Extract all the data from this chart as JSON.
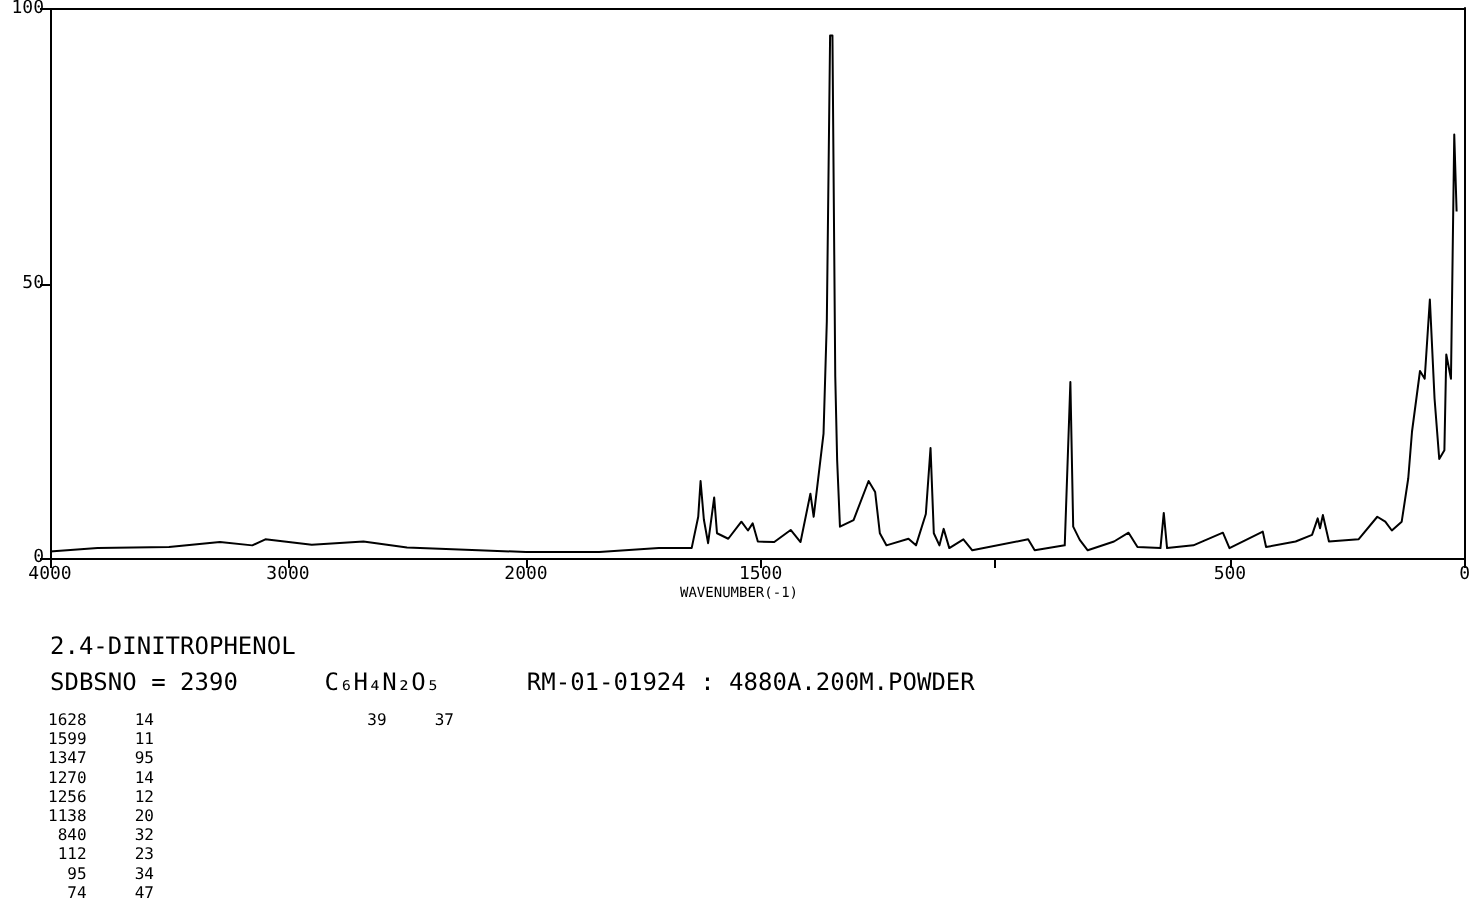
{
  "chart_data": [
    {
      "type": "line",
      "title": "2.4-DINITROPHENOL",
      "subtitle": "SDBSNO = 2390      C₆H₄N₂O₅      RM-01-01924 : 4880A.200M.POWDER",
      "x": [
        4000,
        3800,
        3500,
        3286,
        3150,
        3095,
        2900,
        2683,
        2500,
        2200,
        2000
      ],
      "values": [
        1.2,
        1.8,
        2,
        2.9,
        2.3,
        3.4,
        2.4,
        3,
        1.9,
        1.4,
        1.1
      ],
      "color": "#000000",
      "xlim": [
        4000,
        2000
      ],
      "xticks": [
        4000,
        3000,
        2000
      ],
      "ylim": [
        0,
        100
      ],
      "yticks": [
        0,
        50,
        100
      ],
      "grid": false,
      "annotations": [
        "1628     14",
        "1599     11",
        "1347     95",
        "1270     14",
        "1256     12",
        "1138     20",
        " 840     32",
        " 112     23",
        "  95     34",
        "  74     47",
        "  39     37"
      ]
    },
    {
      "type": "line",
      "xlabel": "WAVENUMBER(-1)",
      "x": [
        2000,
        1844,
        1717,
        1647,
        1633,
        1628,
        1621,
        1612,
        1599,
        1593,
        1569,
        1541,
        1527,
        1517,
        1506,
        1471,
        1436,
        1415,
        1394,
        1387,
        1366,
        1359,
        1352,
        1347,
        1341,
        1337,
        1331,
        1302,
        1270,
        1256,
        1246,
        1232,
        1185,
        1169,
        1148,
        1138,
        1131,
        1119,
        1110,
        1098,
        1068,
        1049,
        930,
        916,
        852,
        840,
        834,
        820,
        803,
        747,
        716,
        697,
        648,
        641,
        634,
        578,
        515,
        501,
        430,
        423,
        360,
        325,
        313,
        308,
        302,
        289,
        226,
        186,
        169,
        155,
        134,
        120,
        112,
        95,
        85,
        74,
        64,
        54,
        43,
        39,
        29,
        22,
        17
      ],
      "values": [
        1.1,
        1.1,
        1.8,
        1.8,
        7.5,
        14,
        7,
        2.7,
        11,
        4.5,
        3.5,
        6.6,
        5,
        6.3,
        3,
        2.9,
        5.1,
        2.9,
        11.7,
        7.5,
        22.6,
        43,
        95,
        95,
        33,
        17.8,
        5.7,
        6.9,
        14,
        12,
        4.5,
        2.3,
        3.5,
        2.3,
        8,
        20,
        4.5,
        2.3,
        5.3,
        1.8,
        3.4,
        1.4,
        3.4,
        1.4,
        2.3,
        32,
        5.7,
        3.3,
        1.4,
        3,
        4.6,
        2,
        1.8,
        8.2,
        1.8,
        2.3,
        4.6,
        1.8,
        4.8,
        2,
        3,
        4.2,
        7.2,
        5.4,
        7.8,
        3,
        3.4,
        7.5,
        6.6,
        5,
        6.6,
        14.5,
        23,
        34,
        32.6,
        47,
        29,
        18,
        19.6,
        37,
        32.6,
        77,
        63
      ],
      "color": "#000000",
      "xlim": [
        2000,
        0
      ],
      "xticks": [
        1500,
        {
          "value": 1000,
          "label": null
        },
        500,
        0
      ],
      "ylim": [
        0,
        100
      ],
      "tick_labels": "x",
      "grid": false
    }
  ]
}
